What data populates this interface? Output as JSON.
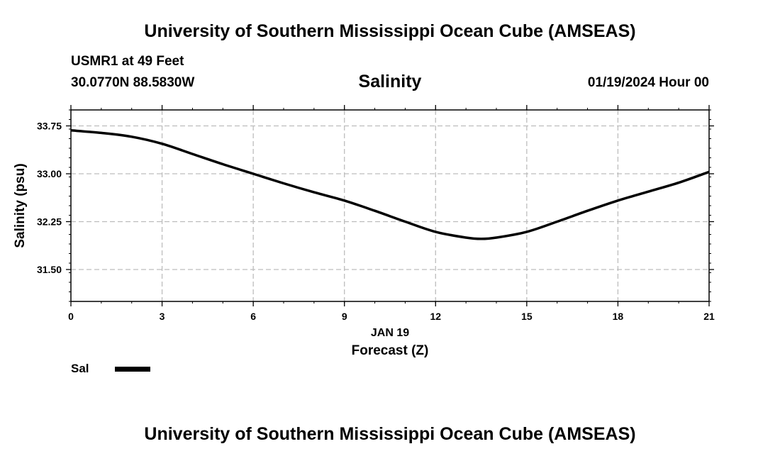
{
  "header": {
    "top_title": "University of Southern Mississippi Ocean Cube (AMSEAS)",
    "station": "USMR1 at 49 Feet",
    "coordinates": "30.0770N  88.5830W",
    "date": "01/19/2024 Hour 00",
    "bottom_title": "University of Southern Mississippi Ocean Cube (AMSEAS)"
  },
  "legend": {
    "label": "Sal",
    "color": "#000000"
  },
  "chart_data": {
    "type": "line",
    "title": "Salinity",
    "xlabel": "Forecast (Z)",
    "xlabel_date": "JAN 19",
    "ylabel": "Salinity (psu)",
    "xlim": [
      0,
      21
    ],
    "ylim": [
      31.0,
      34.0
    ],
    "xticks": [
      0,
      3,
      6,
      9,
      12,
      15,
      18,
      21
    ],
    "yticks": [
      31.5,
      32.25,
      33.0,
      33.75
    ],
    "ytick_labels": [
      "31.50",
      "32.25",
      "33.00",
      "33.75"
    ],
    "grid": true,
    "series": [
      {
        "name": "Sal",
        "color": "#000000",
        "x": [
          0,
          1,
          2,
          3,
          4,
          5,
          6,
          7,
          8,
          9,
          10,
          11,
          12,
          13,
          13.5,
          14,
          15,
          16,
          17,
          18,
          19,
          20,
          21
        ],
        "y": [
          33.68,
          33.64,
          33.58,
          33.47,
          33.31,
          33.15,
          33.0,
          32.85,
          32.71,
          32.58,
          32.42,
          32.25,
          32.09,
          32.0,
          31.98,
          32.0,
          32.09,
          32.25,
          32.42,
          32.58,
          32.72,
          32.86,
          33.03
        ]
      }
    ]
  }
}
